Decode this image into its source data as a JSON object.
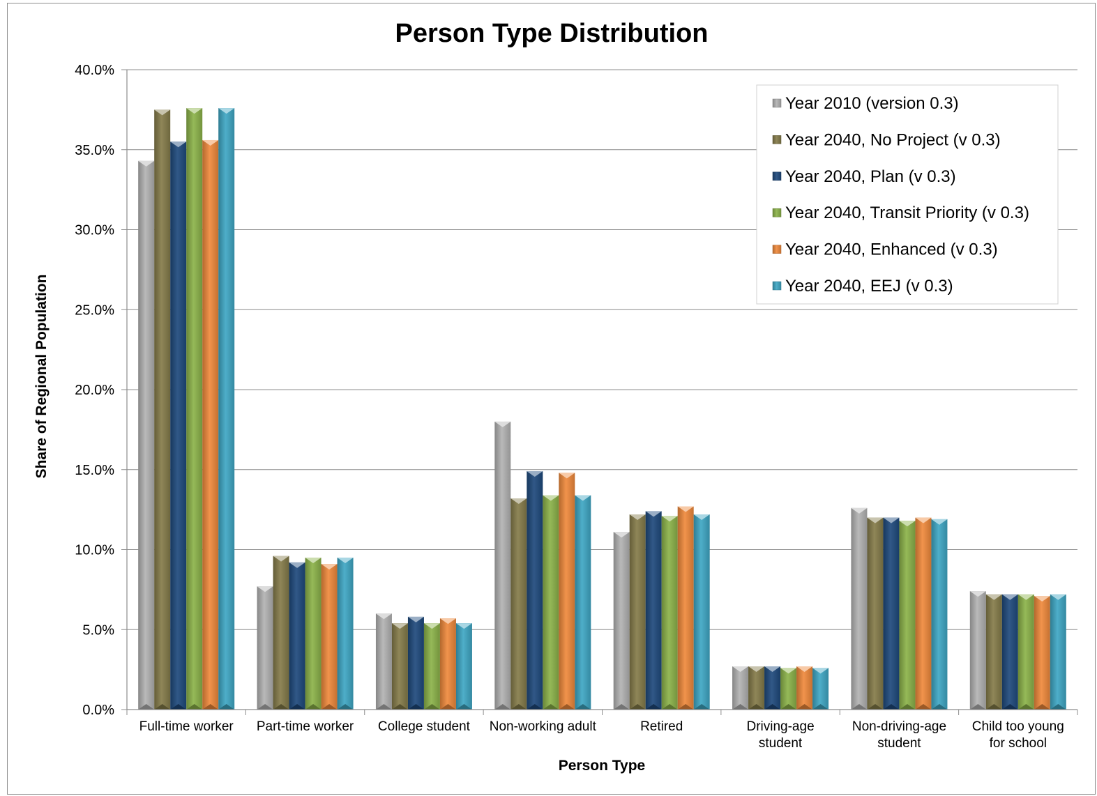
{
  "chart_data": {
    "type": "bar",
    "title": "Person Type Distribution",
    "xlabel": "Person Type",
    "ylabel": "Share of Regional Population",
    "ylim": [
      0,
      40
    ],
    "y_ticks": [
      "0.0%",
      "5.0%",
      "10.0%",
      "15.0%",
      "20.0%",
      "25.0%",
      "30.0%",
      "35.0%",
      "40.0%"
    ],
    "grid": true,
    "legend_position": "top-right",
    "categories": [
      [
        "Full-time worker"
      ],
      [
        "Part-time worker"
      ],
      [
        "College student"
      ],
      [
        "Non-working adult"
      ],
      [
        "Retired"
      ],
      [
        "Driving-age",
        "student"
      ],
      [
        "Non-driving-age",
        "student"
      ],
      [
        "Child too young",
        "for school"
      ]
    ],
    "series": [
      {
        "name": "Year 2010 (version 0.3)",
        "color": "#b3b3b3",
        "values": [
          34.3,
          7.7,
          6.0,
          18.0,
          11.1,
          2.7,
          12.6,
          7.4
        ]
      },
      {
        "name": "Year 2040, No Project (v 0.3)",
        "color": "#857c4a",
        "values": [
          37.5,
          9.6,
          5.4,
          13.2,
          12.2,
          2.7,
          12.0,
          7.2
        ]
      },
      {
        "name": "Year 2040, Plan (v 0.3)",
        "color": "#1f4a7d",
        "values": [
          35.5,
          9.2,
          5.8,
          14.9,
          12.4,
          2.7,
          12.0,
          7.2
        ]
      },
      {
        "name": "Year 2040, Transit Priority (v 0.3)",
        "color": "#8cb34a",
        "values": [
          37.6,
          9.5,
          5.4,
          13.4,
          12.1,
          2.6,
          11.8,
          7.2
        ]
      },
      {
        "name": "Year 2040, Enhanced (v 0.3)",
        "color": "#f08a3c",
        "values": [
          35.6,
          9.1,
          5.7,
          14.8,
          12.7,
          2.7,
          12.0,
          7.1
        ]
      },
      {
        "name": "Year 2040, EEJ (v 0.3)",
        "color": "#3fa7c4",
        "values": [
          37.6,
          9.5,
          5.4,
          13.4,
          12.2,
          2.6,
          11.9,
          7.2
        ]
      }
    ]
  }
}
